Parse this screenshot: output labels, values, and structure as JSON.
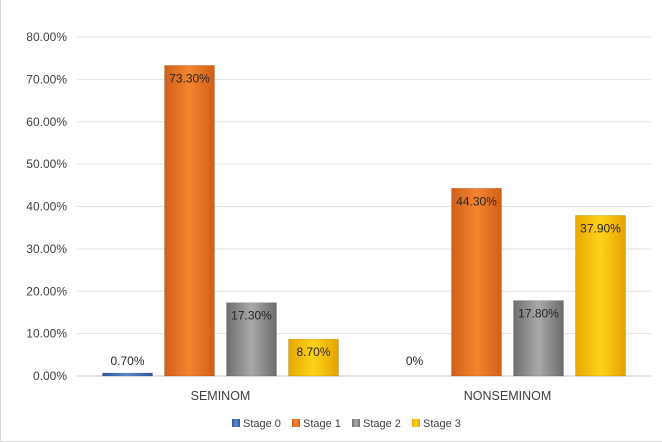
{
  "chart_data": {
    "type": "bar",
    "categories": [
      "SEMINOM",
      "NONSEMINOM"
    ],
    "series": [
      {
        "name": "Stage 0",
        "values": [
          0.7,
          0
        ],
        "labels": [
          "0.70%",
          "0%"
        ],
        "color": "#4472c4"
      },
      {
        "name": "Stage 1",
        "values": [
          73.3,
          44.3
        ],
        "labels": [
          "73.30%",
          "44.30%"
        ],
        "color": "#ed7d31"
      },
      {
        "name": "Stage 2",
        "values": [
          17.3,
          17.8
        ],
        "labels": [
          "17.30%",
          "17.80%"
        ],
        "color": "#a5a5a5"
      },
      {
        "name": "Stage 3",
        "values": [
          8.7,
          37.9
        ],
        "labels": [
          "8.70%",
          "37.90%"
        ],
        "color": "#ffc000"
      }
    ],
    "y_ticks": [
      "0.00%",
      "10.00%",
      "20.00%",
      "30.00%",
      "40.00%",
      "50.00%",
      "60.00%",
      "70.00%",
      "80.00%"
    ],
    "ylim": [
      0,
      80
    ],
    "grid": true,
    "legend_position": "bottom",
    "title": "",
    "xlabel": "",
    "ylabel": ""
  }
}
